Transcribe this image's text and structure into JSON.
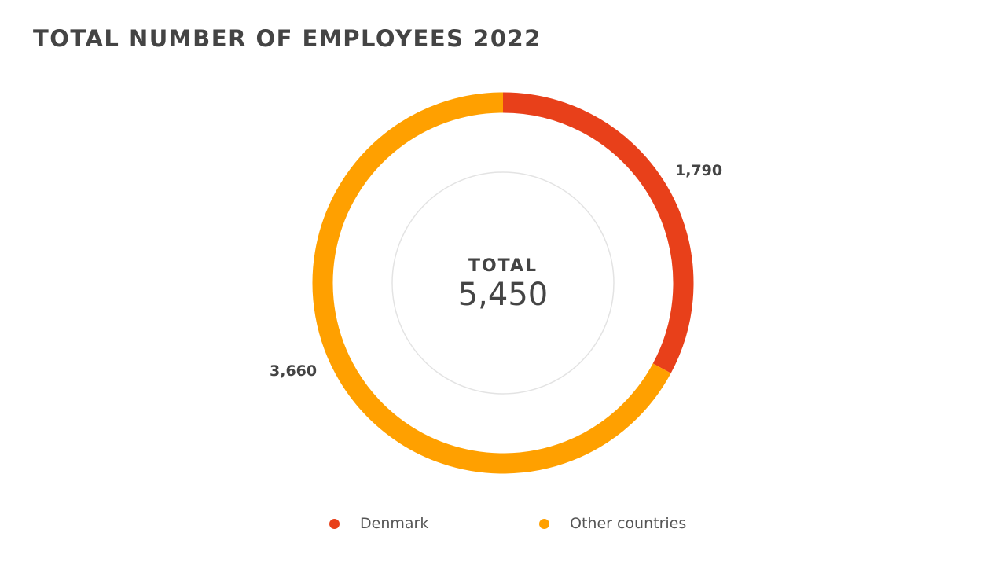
{
  "chart_data": {
    "type": "pie",
    "variant": "donut",
    "title": "TOTAL NUMBER OF EMPLOYEES 2022",
    "center_label": "TOTAL",
    "center_value": "5,450",
    "total": 5450,
    "categories": [
      "Denmark",
      "Other countries"
    ],
    "values": [
      1790,
      3660
    ],
    "data_labels": [
      "1,790",
      "3,660"
    ],
    "colors": [
      "#E8401A",
      "#FFA000"
    ],
    "start_angle": "top, clockwise",
    "legend": "bottom"
  }
}
